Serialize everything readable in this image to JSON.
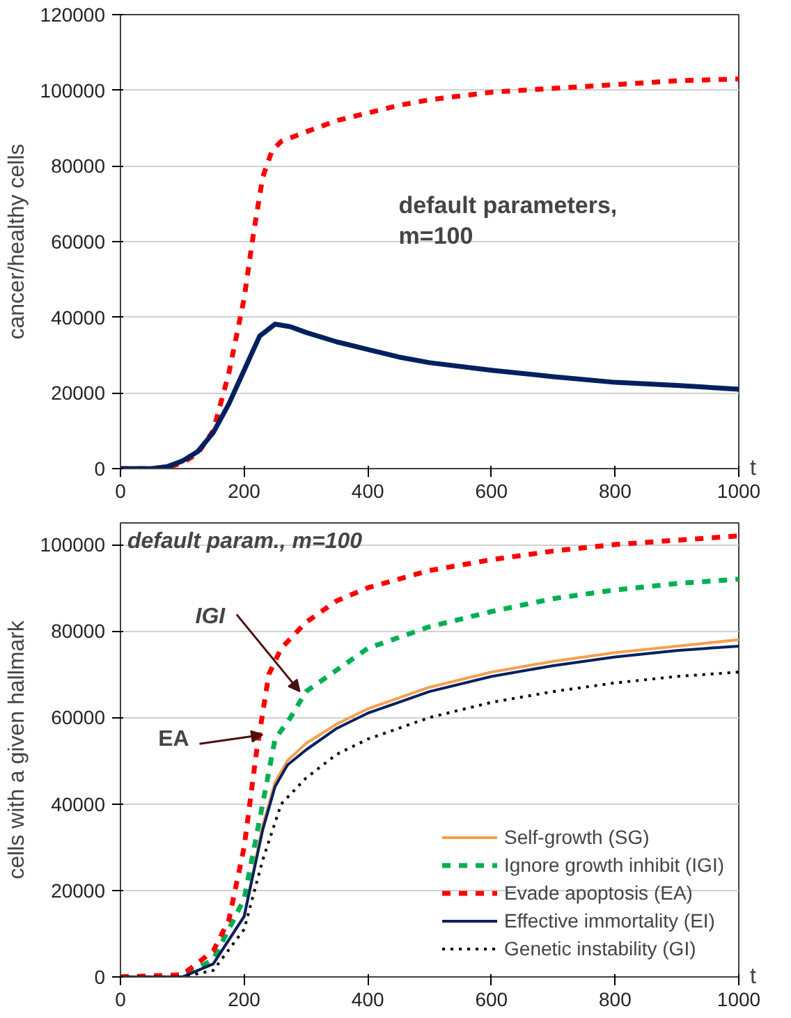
{
  "chart_data": [
    {
      "type": "line",
      "xlabel": "t",
      "ylabel": "cancer/healthy cells",
      "xlim": [
        0,
        1000
      ],
      "xticks": [
        0,
        200,
        400,
        600,
        800,
        1000
      ],
      "ylim": [
        0,
        120000
      ],
      "yticks": [
        0,
        20000,
        40000,
        60000,
        80000,
        100000,
        120000
      ],
      "grid": "y",
      "legend": false,
      "annotations": [
        "default parameters,\nm=100"
      ],
      "x": [
        0,
        50,
        75,
        100,
        125,
        150,
        175,
        200,
        215,
        230,
        245,
        260,
        300,
        350,
        400,
        450,
        500,
        600,
        700,
        800,
        900,
        1000
      ],
      "series": [
        {
          "color": "#ff0000",
          "line_style": "dashed",
          "values": [
            0,
            0,
            300,
            1500,
            4000,
            10000,
            25000,
            45000,
            62000,
            77000,
            84000,
            86500,
            89000,
            92000,
            94000,
            96000,
            97500,
            99500,
            100500,
            101500,
            102500,
            103000
          ]
        },
        {
          "color": "#002060",
          "line_style": "solid",
          "x": [
            0,
            50,
            75,
            100,
            125,
            150,
            175,
            200,
            225,
            250,
            275,
            300,
            350,
            400,
            450,
            500,
            600,
            700,
            800,
            900,
            1000
          ],
          "values": [
            0,
            0,
            500,
            2000,
            4500,
            9500,
            17000,
            26000,
            35000,
            38200,
            37500,
            36000,
            33500,
            31500,
            29500,
            28000,
            26000,
            24300,
            22800,
            22000,
            21000
          ]
        }
      ]
    },
    {
      "type": "line",
      "xlabel": "t",
      "ylabel": "cells with a given hallmark",
      "xlim": [
        0,
        1000
      ],
      "xticks": [
        0,
        200,
        400,
        600,
        800,
        1000
      ],
      "ylim": [
        0,
        105000
      ],
      "yticks": [
        0,
        20000,
        40000,
        60000,
        80000,
        100000
      ],
      "grid": "y",
      "legend": "bottom right",
      "annotations": [
        "default param., m=100",
        {
          "text": "IGI",
          "x": 290,
          "y": 66000
        },
        {
          "text": "EA",
          "x": 230,
          "y": 56000
        }
      ],
      "series": [
        {
          "name": "Self-growth (SG)",
          "color": "#f4a050",
          "line_style": "solid",
          "x": [
            0,
            100,
            150,
            200,
            230,
            250,
            270,
            300,
            350,
            400,
            500,
            600,
            700,
            800,
            900,
            1000
          ],
          "values": [
            0,
            0,
            3000,
            14000,
            35000,
            45000,
            50000,
            54000,
            58500,
            62000,
            67000,
            70500,
            73000,
            75000,
            76500,
            78000
          ]
        },
        {
          "name": "Ignore growth inhibit (IGI)",
          "color": "#00b050",
          "line_style": "dashed",
          "x": [
            0,
            100,
            150,
            200,
            230,
            250,
            275,
            300,
            350,
            400,
            500,
            600,
            700,
            800,
            900,
            1000
          ],
          "values": [
            0,
            200,
            4000,
            18000,
            40000,
            55000,
            60000,
            66000,
            71000,
            76000,
            81000,
            84500,
            87500,
            89500,
            91000,
            92000
          ]
        },
        {
          "name": "Evade apoptosis (EA)",
          "color": "#ff0000",
          "line_style": "dashed",
          "x": [
            0,
            100,
            150,
            175,
            200,
            220,
            240,
            260,
            300,
            350,
            400,
            500,
            600,
            700,
            800,
            900,
            1000
          ],
          "values": [
            0,
            500,
            6000,
            13000,
            30000,
            52000,
            70000,
            76000,
            82000,
            87000,
            90000,
            94000,
            96500,
            98500,
            100000,
            101000,
            102000
          ]
        },
        {
          "name": "Effective immortality (EI)",
          "color": "#002060",
          "line_style": "solid",
          "x": [
            0,
            100,
            150,
            200,
            230,
            250,
            270,
            300,
            350,
            400,
            500,
            600,
            700,
            800,
            900,
            1000
          ],
          "values": [
            0,
            0,
            3000,
            14000,
            34000,
            44000,
            49000,
            52500,
            57500,
            61000,
            66000,
            69500,
            72000,
            74000,
            75500,
            76500
          ]
        },
        {
          "name": "Genetic instability (GI)",
          "color": "#000000",
          "line_style": "dotted",
          "x": [
            0,
            100,
            150,
            200,
            230,
            260,
            300,
            350,
            400,
            500,
            600,
            700,
            800,
            900,
            1000
          ],
          "values": [
            0,
            0,
            1500,
            11000,
            27000,
            40000,
            46000,
            51500,
            55000,
            60000,
            63500,
            66000,
            68000,
            69500,
            70500
          ]
        }
      ]
    }
  ]
}
